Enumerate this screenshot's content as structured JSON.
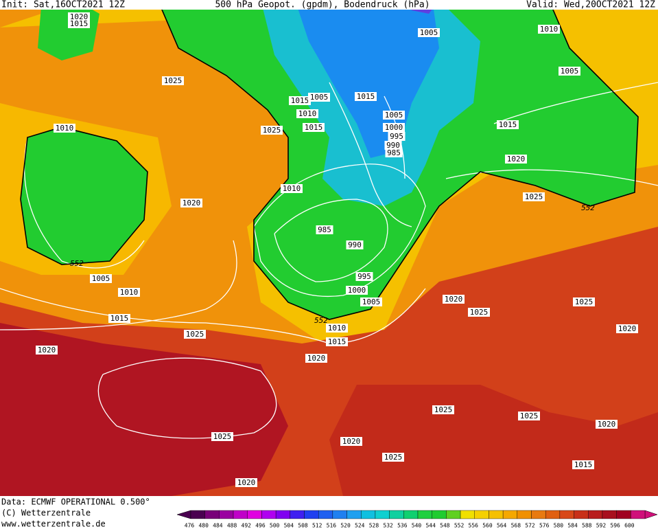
{
  "header": {
    "init": "Init: Sat,16OCT2021 12Z",
    "title": "500 hPa Geopot. (gpdm), Bodendruck (hPa)",
    "valid": "Valid: Wed,20OCT2021 12Z"
  },
  "footer": {
    "data": "Data: ECMWF OPERATIONAL 0.500°",
    "copyright": "(C) Wetterzentrale",
    "url": "www.wetterzentrale.de"
  },
  "isobar_labels": [
    "1020",
    "1015",
    "1025",
    "1015",
    "1005",
    "1010",
    "1015",
    "1025",
    "1015",
    "1005",
    "1010",
    "1005",
    "1005",
    "1000",
    "995",
    "990",
    "985",
    "1015",
    "1020",
    "1010",
    "1020",
    "1010",
    "1025",
    "552",
    "985",
    "990",
    "552",
    "1005",
    "1010",
    "995",
    "1000",
    "1005",
    "1020",
    "1025",
    "1025",
    "1015",
    "552",
    "1010",
    "1020",
    "1025",
    "1015",
    "1020",
    "1020",
    "1025",
    "1025",
    "1020",
    "1025",
    "1020",
    "1025",
    "1015",
    "1020"
  ],
  "legend": {
    "labels": [
      476,
      480,
      484,
      488,
      492,
      496,
      500,
      504,
      508,
      512,
      516,
      520,
      524,
      528,
      532,
      536,
      540,
      544,
      548,
      552,
      556,
      560,
      564,
      568,
      572,
      576,
      580,
      584,
      588,
      592,
      596,
      600
    ],
    "colors": [
      "#4a0050",
      "#780078",
      "#9a00a0",
      "#c000c8",
      "#e000e0",
      "#b000f0",
      "#8000f0",
      "#4020f0",
      "#2040f0",
      "#2060f0",
      "#2080f0",
      "#20a0f0",
      "#10c0e0",
      "#10d0d0",
      "#10d0a0",
      "#10d070",
      "#20d040",
      "#20cc30",
      "#60d020",
      "#f0e000",
      "#f5d000",
      "#f5c000",
      "#f5a800",
      "#f09000",
      "#e87a10",
      "#e06010",
      "#d84818",
      "#c83018",
      "#b81e1e",
      "#a8101e",
      "#a00020",
      "#d0107a"
    ]
  }
}
